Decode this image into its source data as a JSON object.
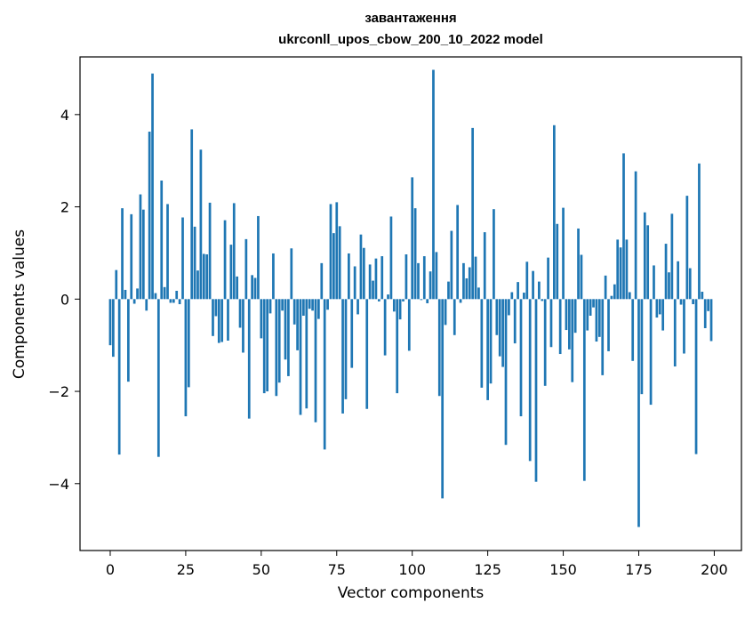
{
  "chart_data": {
    "type": "bar",
    "title": "завантаження",
    "subtitle": "ukrconll_upos_cbow_200_10_2022 model",
    "xlabel": "Vector components",
    "ylabel": "Components values",
    "xlim": [
      -10,
      209
    ],
    "ylim": [
      -5.45,
      5.25
    ],
    "xticks": [
      0,
      25,
      50,
      75,
      100,
      125,
      150,
      175,
      200
    ],
    "yticks": [
      -4,
      -2,
      0,
      2,
      4
    ],
    "ytick_labels": [
      "−4",
      "−2",
      "0",
      "2",
      "4"
    ],
    "bar_color": "#1f77b4",
    "values": [
      -1.0,
      -1.25,
      0.63,
      -3.37,
      1.97,
      0.2,
      -1.79,
      1.84,
      -0.1,
      0.23,
      2.27,
      1.94,
      -0.25,
      3.63,
      4.89,
      0.13,
      -3.42,
      2.57,
      0.26,
      2.06,
      -0.08,
      -0.08,
      0.18,
      -0.11,
      1.77,
      -2.54,
      -1.91,
      3.68,
      1.57,
      0.62,
      3.24,
      0.98,
      0.97,
      2.09,
      -0.8,
      -0.37,
      -0.95,
      -0.93,
      1.71,
      -0.9,
      1.18,
      2.08,
      0.49,
      -0.62,
      -1.16,
      1.3,
      -2.59,
      0.52,
      0.46,
      1.8,
      -0.85,
      -2.04,
      -2.0,
      -0.31,
      0.99,
      -2.1,
      -1.81,
      -0.25,
      -1.31,
      -1.67,
      1.1,
      -0.55,
      -1.11,
      -2.51,
      -0.36,
      -2.37,
      -0.21,
      -0.25,
      -2.67,
      -0.43,
      0.78,
      -3.26,
      -0.23,
      2.06,
      1.43,
      2.1,
      1.58,
      -2.48,
      -2.17,
      0.99,
      -1.49,
      0.71,
      -0.33,
      1.4,
      1.11,
      -2.38,
      0.75,
      0.4,
      0.88,
      -0.05,
      0.93,
      -1.22,
      0.1,
      1.79,
      -0.27,
      -2.04,
      -0.44,
      -0.05,
      0.97,
      -1.12,
      2.64,
      1.97,
      0.78,
      -0.02,
      0.93,
      -0.09,
      0.6,
      4.97,
      1.02,
      -2.1,
      -4.32,
      -0.56,
      0.38,
      1.48,
      -0.78,
      2.04,
      -0.08,
      0.78,
      0.45,
      0.69,
      3.71,
      0.92,
      0.25,
      -1.92,
      1.45,
      -2.19,
      -1.83,
      1.95,
      -0.78,
      -1.24,
      -1.47,
      -3.16,
      -0.35,
      0.15,
      -0.96,
      0.37,
      -2.54,
      0.14,
      0.81,
      -3.51,
      0.61,
      -3.96,
      0.38,
      -0.04,
      -1.88,
      0.9,
      -1.04,
      3.77,
      1.63,
      -1.19,
      1.98,
      -0.67,
      -1.09,
      -1.8,
      -0.73,
      1.53,
      0.96,
      -3.94,
      -0.68,
      -0.36,
      -0.18,
      -0.92,
      -0.82,
      -1.65,
      0.51,
      -1.13,
      0.07,
      0.32,
      1.29,
      1.12,
      3.16,
      1.29,
      0.15,
      -1.34,
      2.77,
      -4.94,
      -2.06,
      1.88,
      1.6,
      -2.29,
      0.73,
      -0.4,
      -0.33,
      -0.68,
      1.2,
      0.58,
      1.85,
      -1.46,
      0.82,
      -0.12,
      -1.18,
      2.24,
      0.67,
      -0.11,
      -3.36,
      2.94,
      0.16,
      -0.63,
      -0.26,
      -0.91
    ]
  }
}
